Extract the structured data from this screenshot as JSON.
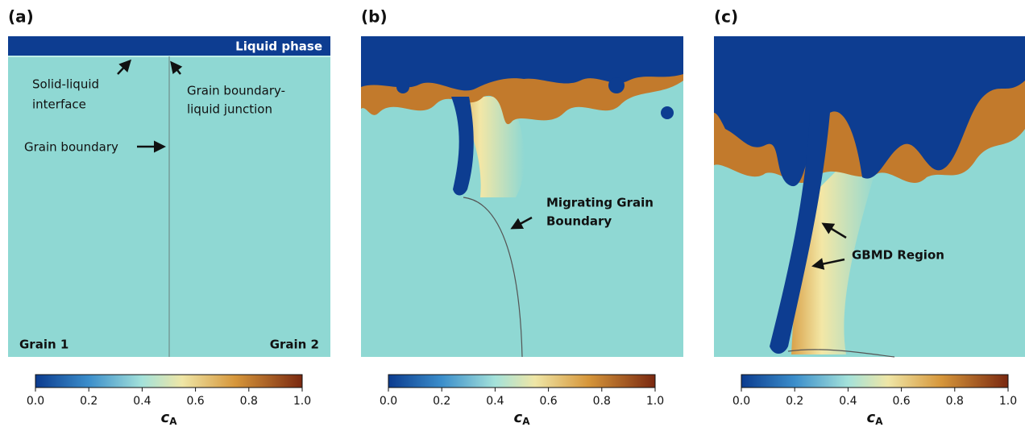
{
  "panels": [
    {
      "label": "(a)",
      "texts": [
        "Liquid phase",
        "Solid-liquid",
        "interface",
        "Grain boundary-",
        "liquid junction",
        "Grain boundary",
        "Grain 1",
        "Grain 2"
      ]
    },
    {
      "label": "(b)",
      "texts": [
        "Migrating Grain",
        "Boundary"
      ]
    },
    {
      "label": "(c)",
      "texts": [
        "GBMD Region"
      ]
    }
  ],
  "colorbar": {
    "lim": [
      0,
      1
    ],
    "ticks": [
      {
        "value": 0,
        "label": "0.0"
      },
      {
        "value": 0.2,
        "label": "0.2"
      },
      {
        "value": 0.4,
        "label": "0.4"
      },
      {
        "value": 0.6,
        "label": "0.6"
      },
      {
        "value": 0.8,
        "label": "0.8"
      },
      {
        "value": 1,
        "label": "1.0"
      }
    ],
    "label": "c",
    "label_sub": "A"
  }
}
